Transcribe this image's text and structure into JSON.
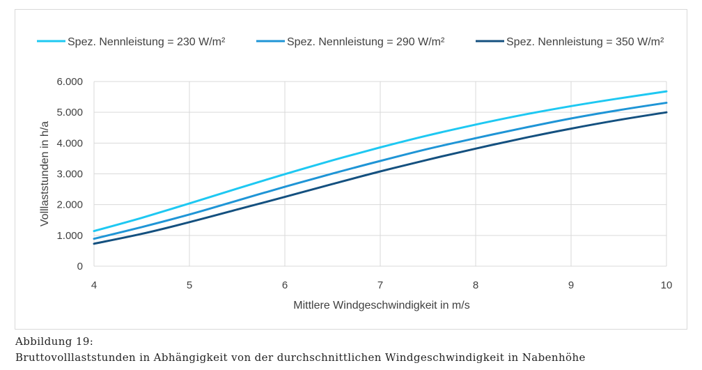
{
  "chart_data": {
    "type": "line",
    "xlabel": "Mittlere Windgeschwindigkeit in m/s",
    "ylabel": "Volllaststunden in h/a",
    "xlim": [
      4,
      10
    ],
    "ylim": [
      0,
      6000
    ],
    "x_ticks": [
      "4",
      "5",
      "6",
      "7",
      "8",
      "9",
      "10"
    ],
    "y_ticks": [
      "0",
      "1.000",
      "2.000",
      "3.000",
      "4.000",
      "5.000",
      "6.000"
    ],
    "grid": true,
    "legend_position": "top",
    "x": [
      4,
      4.5,
      5,
      5.5,
      6,
      6.5,
      7,
      7.5,
      8,
      8.5,
      9,
      9.5,
      10
    ],
    "series": [
      {
        "name": "Spez. Nennleistung = 230 W/m²",
        "color": "#1ec8f2",
        "values": [
          1140,
          1570,
          2040,
          2520,
          2990,
          3440,
          3860,
          4250,
          4600,
          4920,
          5200,
          5450,
          5680
        ]
      },
      {
        "name": "Spez. Nennleistung = 290 W/m²",
        "color": "#1f95d6",
        "values": [
          890,
          1270,
          1680,
          2130,
          2580,
          3010,
          3420,
          3810,
          4160,
          4490,
          4800,
          5070,
          5310
        ]
      },
      {
        "name": "Spez. Nennleistung = 350 W/m²",
        "color": "#14507f",
        "values": [
          730,
          1050,
          1430,
          1840,
          2250,
          2670,
          3080,
          3460,
          3820,
          4160,
          4470,
          4750,
          5000
        ]
      }
    ]
  },
  "caption": {
    "label": "Abbildung 19:",
    "text": "Bruttovolllaststunden in Abhängigkeit von der durchschnittlichen Windgeschwindigkeit in Nabenhöhe"
  }
}
